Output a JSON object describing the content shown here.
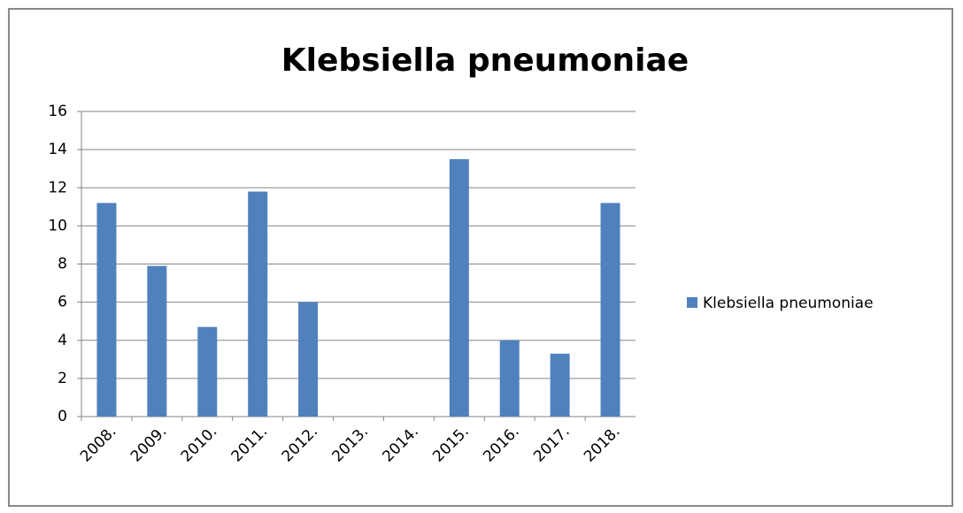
{
  "chart_data": {
    "type": "bar",
    "title": "Klebsiella pneumoniae",
    "categories": [
      "2008.",
      "2009.",
      "2010.",
      "2011.",
      "2012.",
      "2013.",
      "2014.",
      "2015.",
      "2016.",
      "2017.",
      "2018."
    ],
    "series": [
      {
        "name": "Klebsiella pneumoniae",
        "color": "#4f81bd",
        "values": [
          11.2,
          7.9,
          4.7,
          11.8,
          6.0,
          0,
          0,
          13.5,
          4.0,
          3.3,
          11.2
        ]
      }
    ],
    "ylim": [
      0,
      16
    ],
    "yticks": [
      0,
      2,
      4,
      6,
      8,
      10,
      12,
      14,
      16
    ],
    "grid": true,
    "legend": "right"
  }
}
